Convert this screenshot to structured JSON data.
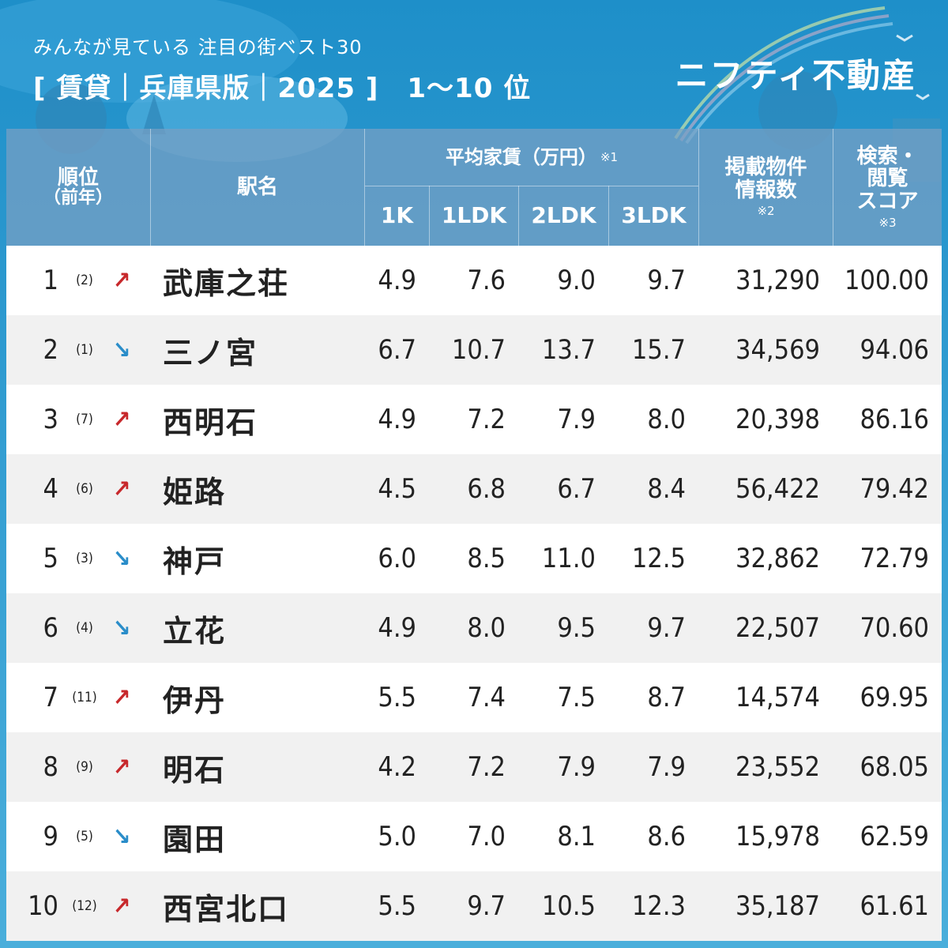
{
  "header": {
    "subtitle": "みんなが見ている 注目の街ベスト30",
    "title": "[ 賃貸｜兵庫県版｜2025 ]",
    "range": "1〜10 位",
    "brand": "ニフティ不動産"
  },
  "columns": {
    "rank_line1": "順位",
    "rank_line2": "（前年）",
    "station": "駅名",
    "rent_group": "平均家賃（万円）",
    "rent_note": "※1",
    "k1": "1K",
    "ldk1": "1LDK",
    "ldk2": "2LDK",
    "ldk3": "3LDK",
    "listings_line1": "掲載物件",
    "listings_line2": "情報数",
    "listings_note": "※2",
    "score_line1": "検索・",
    "score_line2": "閲覧",
    "score_line3": "スコア",
    "score_note": "※3"
  },
  "rows": [
    {
      "rank": "1",
      "prev": "(2)",
      "trend": "up",
      "arrow": "↗",
      "station": "武庫之荘",
      "k1": "4.9",
      "ldk1": "7.6",
      "ldk2": "9.0",
      "ldk3": "9.7",
      "listings": "31,290",
      "score": "100.00"
    },
    {
      "rank": "2",
      "prev": "(1)",
      "trend": "down",
      "arrow": "↘",
      "station": "三ノ宮",
      "k1": "6.7",
      "ldk1": "10.7",
      "ldk2": "13.7",
      "ldk3": "15.7",
      "listings": "34,569",
      "score": "94.06"
    },
    {
      "rank": "3",
      "prev": "(7)",
      "trend": "up",
      "arrow": "↗",
      "station": "西明石",
      "k1": "4.9",
      "ldk1": "7.2",
      "ldk2": "7.9",
      "ldk3": "8.0",
      "listings": "20,398",
      "score": "86.16"
    },
    {
      "rank": "4",
      "prev": "(6)",
      "trend": "up",
      "arrow": "↗",
      "station": "姫路",
      "k1": "4.5",
      "ldk1": "6.8",
      "ldk2": "6.7",
      "ldk3": "8.4",
      "listings": "56,422",
      "score": "79.42"
    },
    {
      "rank": "5",
      "prev": "(3)",
      "trend": "down",
      "arrow": "↘",
      "station": "神戸",
      "k1": "6.0",
      "ldk1": "8.5",
      "ldk2": "11.0",
      "ldk3": "12.5",
      "listings": "32,862",
      "score": "72.79"
    },
    {
      "rank": "6",
      "prev": "(4)",
      "trend": "down",
      "arrow": "↘",
      "station": "立花",
      "k1": "4.9",
      "ldk1": "8.0",
      "ldk2": "9.5",
      "ldk3": "9.7",
      "listings": "22,507",
      "score": "70.60"
    },
    {
      "rank": "7",
      "prev": "(11)",
      "trend": "up",
      "arrow": "↗",
      "station": "伊丹",
      "k1": "5.5",
      "ldk1": "7.4",
      "ldk2": "7.5",
      "ldk3": "8.7",
      "listings": "14,574",
      "score": "69.95"
    },
    {
      "rank": "8",
      "prev": "(9)",
      "trend": "up",
      "arrow": "↗",
      "station": "明石",
      "k1": "4.2",
      "ldk1": "7.2",
      "ldk2": "7.9",
      "ldk3": "7.9",
      "listings": "23,552",
      "score": "68.05"
    },
    {
      "rank": "9",
      "prev": "(5)",
      "trend": "down",
      "arrow": "↘",
      "station": "園田",
      "k1": "5.0",
      "ldk1": "7.0",
      "ldk2": "8.1",
      "ldk3": "8.6",
      "listings": "15,978",
      "score": "62.59"
    },
    {
      "rank": "10",
      "prev": "(12)",
      "trend": "up",
      "arrow": "↗",
      "station": "西宮北口",
      "k1": "5.5",
      "ldk1": "9.7",
      "ldk2": "10.5",
      "ldk3": "12.3",
      "listings": "35,187",
      "score": "61.61"
    }
  ],
  "colors": {
    "background": "#2a9ad2",
    "up_arrow": "#c7282b",
    "down_arrow": "#2a8dc9",
    "row_alt": "#f1f1f1"
  }
}
